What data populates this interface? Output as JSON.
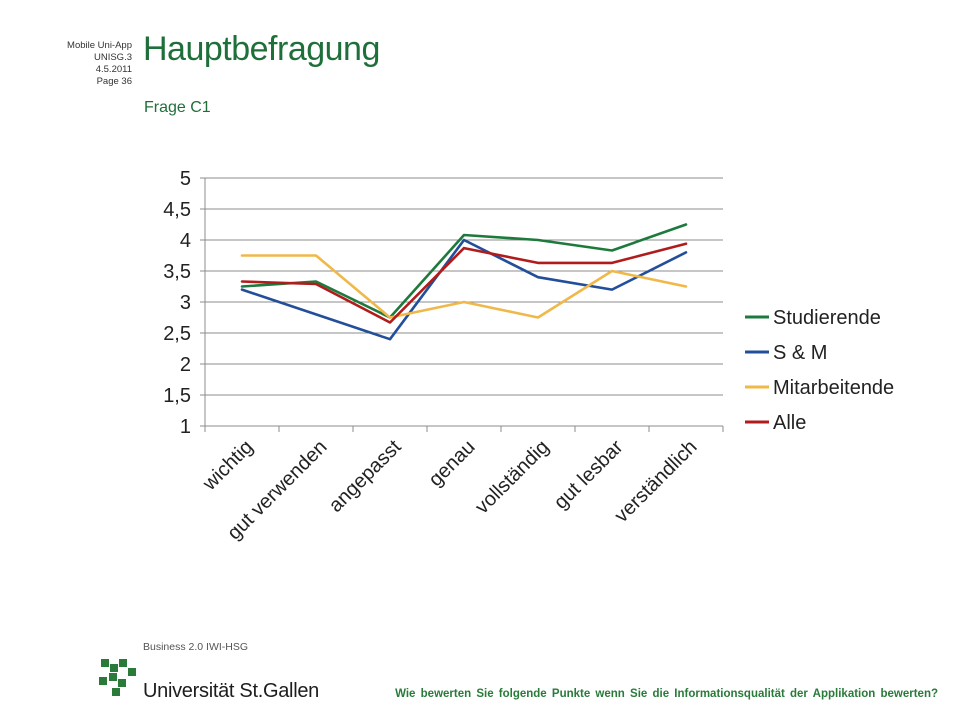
{
  "meta": {
    "line1": "Mobile Uni-App",
    "line2": "UNISG.3",
    "line3": "4.5.2011",
    "line4": "Page 36"
  },
  "header": {
    "title": "Hauptbefragung",
    "subtitle": "Frage C1"
  },
  "footer": {
    "question": "Wie bewerten Sie folgende Punkte wenn Sie die Informationsqualität der Applikation bewerten?",
    "logo_small": "Business 2.0 IWI-HSG",
    "logo_main": "Universität St.Gallen"
  },
  "colors": {
    "brand_green": "#1f6f3a",
    "logo_green": "#2a7a3a",
    "grid": "#888888"
  },
  "chart_data": {
    "type": "line",
    "categories": [
      "wichtig",
      "gut verwenden",
      "angepasst",
      "genau",
      "vollständig",
      "gut lesbar",
      "verständlich"
    ],
    "ylim": [
      1,
      5
    ],
    "yticks": [
      "1",
      "1,5",
      "2",
      "2,5",
      "3",
      "3,5",
      "4",
      "4,5",
      "5"
    ],
    "ytick_values": [
      1,
      1.5,
      2,
      2.5,
      3,
      3.5,
      4,
      4.5,
      5
    ],
    "grid": true,
    "legend_position": "right",
    "series": [
      {
        "name": "Studierende",
        "color": "#1e7a3c",
        "values": [
          3.25,
          3.33,
          2.75,
          4.08,
          4.0,
          3.83,
          4.25
        ]
      },
      {
        "name": "S & M",
        "color": "#234e9a",
        "values": [
          3.2,
          2.8,
          2.4,
          4.0,
          3.4,
          3.2,
          3.8
        ]
      },
      {
        "name": "Mitarbeitende",
        "color": "#f0b849",
        "values": [
          3.75,
          3.75,
          2.75,
          3.0,
          2.75,
          3.5,
          3.25
        ]
      },
      {
        "name": "Alle",
        "color": "#b01c1c",
        "values": [
          3.33,
          3.29,
          2.67,
          3.87,
          3.63,
          3.63,
          3.94
        ]
      }
    ]
  }
}
